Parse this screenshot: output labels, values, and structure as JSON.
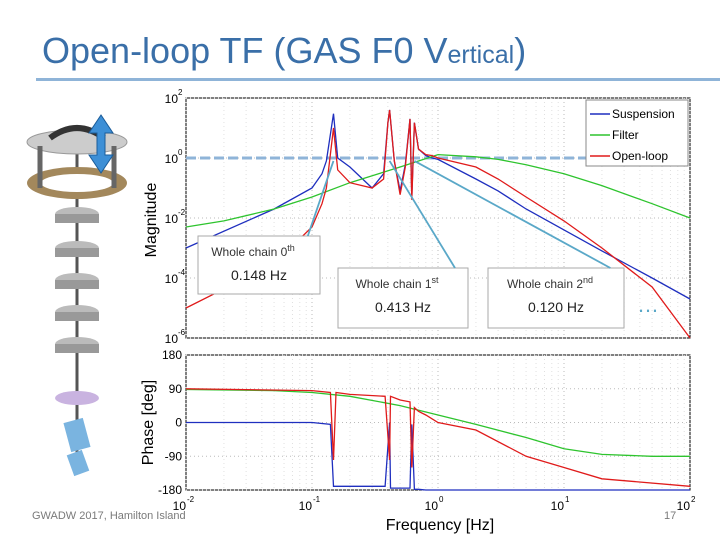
{
  "title": {
    "main": "Open-loop TF (GAS F0 V",
    "small": "ertical",
    "close": ")"
  },
  "footer": "GWADW 2017, Hamilton Island",
  "page_number": "17",
  "colors": {
    "suspension": "#1f2fbf",
    "filter": "#2ec42e",
    "openloop": "#e01b1b",
    "title": "#3a6fa8",
    "annotation": "#5aa8c8"
  },
  "chart_data": [
    {
      "type": "line",
      "ylabel": "Magnitude",
      "yscale": "log",
      "xscale": "log",
      "xlim": [
        0.01,
        100
      ],
      "ylim": [
        1e-06,
        100
      ],
      "yticks": [
        {
          "base": "10",
          "exp": "2"
        },
        {
          "base": "10",
          "exp": "0"
        },
        {
          "base": "10",
          "exp": "-2"
        },
        {
          "base": "10",
          "exp": "-4"
        },
        {
          "base": "10",
          "exp": "-6"
        }
      ],
      "grid": true,
      "legend": {
        "position": "top-right",
        "entries": [
          "Suspension",
          "Filter",
          "Open-loop"
        ]
      },
      "unity_reference": 1,
      "series": [
        {
          "name": "Suspension",
          "color": "#1f2fbf",
          "x": [
            0.01,
            0.05,
            0.1,
            0.12,
            0.13,
            0.148,
            0.16,
            0.2,
            0.3,
            0.37,
            0.4,
            0.413,
            0.45,
            0.5,
            0.55,
            0.6,
            0.62,
            0.65,
            0.7,
            0.8,
            0.9,
            1,
            2,
            3,
            5,
            10,
            20,
            50,
            100
          ],
          "y": [
            0.001,
            0.02,
            0.1,
            0.3,
            0.8,
            30,
            1.0,
            0.5,
            0.1,
            0.3,
            15,
            40,
            0.8,
            0.08,
            0.6,
            20,
            0.05,
            15,
            2,
            1.2,
            1,
            0.9,
            0.2,
            0.08,
            0.02,
            0.004,
            0.0008,
            0.0001,
            2e-05
          ]
        },
        {
          "name": "Filter",
          "color": "#2ec42e",
          "x": [
            0.01,
            0.02,
            0.05,
            0.1,
            0.2,
            0.5,
            1,
            2,
            3,
            5,
            10,
            20,
            50,
            100
          ],
          "y": [
            0.005,
            0.008,
            0.02,
            0.05,
            0.15,
            0.5,
            1.3,
            1.1,
            0.9,
            0.6,
            0.3,
            0.12,
            0.03,
            0.01
          ]
        },
        {
          "name": "Open-loop",
          "color": "#e01b1b",
          "x": [
            0.01,
            0.05,
            0.1,
            0.12,
            0.13,
            0.148,
            0.16,
            0.2,
            0.3,
            0.37,
            0.4,
            0.413,
            0.45,
            0.5,
            0.55,
            0.6,
            0.62,
            0.65,
            0.7,
            0.8,
            0.9,
            1,
            2,
            3,
            5,
            10,
            20,
            50,
            100
          ],
          "y": [
            1e-05,
            0.0003,
            0.005,
            0.03,
            0.1,
            10,
            0.4,
            0.15,
            0.1,
            0.2,
            15,
            40,
            0.8,
            0.06,
            0.5,
            20,
            0.04,
            15,
            2,
            1.3,
            1.2,
            1,
            0.5,
            0.2,
            0.05,
            0.008,
            0.001,
            5e-05,
            1e-06
          ]
        }
      ]
    },
    {
      "type": "line",
      "xlabel": "Frequency [Hz]",
      "ylabel": "Phase [deg]",
      "xscale": "log",
      "xlim": [
        0.01,
        100
      ],
      "ylim": [
        -180,
        180
      ],
      "yticks": [
        "180",
        "90",
        "0",
        "-90",
        "-180"
      ],
      "xticks": [
        {
          "base": "10",
          "exp": "-2"
        },
        {
          "base": "10",
          "exp": "-1"
        },
        {
          "base": "10",
          "exp": "0"
        },
        {
          "base": "10",
          "exp": "1"
        },
        {
          "base": "10",
          "exp": "2"
        }
      ],
      "grid": true,
      "series": [
        {
          "name": "Suspension",
          "color": "#1f2fbf",
          "x": [
            0.01,
            0.1,
            0.14,
            0.148,
            0.155,
            0.2,
            0.38,
            0.413,
            0.42,
            0.5,
            0.6,
            0.62,
            0.65,
            0.7,
            0.8,
            1,
            10,
            100
          ],
          "y": [
            0,
            0,
            -5,
            -170,
            -170,
            -170,
            -170,
            0,
            -175,
            -175,
            -175,
            -5,
            -178,
            -178,
            -180,
            -180,
            -180,
            -180
          ]
        },
        {
          "name": "Filter",
          "color": "#2ec42e",
          "x": [
            0.01,
            0.05,
            0.1,
            0.2,
            0.5,
            1,
            2,
            5,
            10,
            20,
            50,
            100
          ],
          "y": [
            88,
            85,
            80,
            70,
            45,
            20,
            -5,
            -40,
            -70,
            -85,
            -90,
            -90
          ]
        },
        {
          "name": "Open-loop",
          "color": "#e01b1b",
          "x": [
            0.01,
            0.1,
            0.14,
            0.148,
            0.155,
            0.2,
            0.38,
            0.413,
            0.42,
            0.5,
            0.6,
            0.62,
            0.65,
            0.7,
            0.8,
            1,
            2,
            5,
            10,
            20,
            100
          ],
          "y": [
            90,
            85,
            80,
            -100,
            80,
            75,
            70,
            -100,
            70,
            60,
            55,
            -120,
            40,
            30,
            20,
            0,
            -20,
            -90,
            -120,
            -150,
            -170
          ]
        }
      ]
    }
  ],
  "annotations": [
    {
      "label": "Whole chain 0",
      "sup": "th",
      "value": "0.148 Hz"
    },
    {
      "label": "Whole chain 1",
      "sup": "st",
      "value": "0.413 Hz"
    },
    {
      "label": "Whole chain 2",
      "sup": "nd",
      "value": "0.120 Hz"
    }
  ],
  "ellipsis": "…"
}
